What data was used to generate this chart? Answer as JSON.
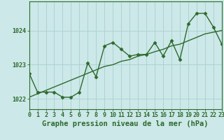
{
  "hours": [
    0,
    1,
    2,
    3,
    4,
    5,
    6,
    7,
    8,
    9,
    10,
    11,
    12,
    13,
    14,
    15,
    16,
    17,
    18,
    19,
    20,
    21,
    22,
    23
  ],
  "pressure": [
    1022.75,
    1022.2,
    1022.2,
    1022.2,
    1022.05,
    1022.05,
    1022.2,
    1023.05,
    1022.65,
    1023.55,
    1023.65,
    1023.45,
    1023.25,
    1023.3,
    1023.3,
    1023.65,
    1023.25,
    1023.7,
    1023.15,
    1024.2,
    1024.5,
    1024.5,
    1024.1,
    1023.6
  ],
  "trend": [
    1022.05,
    1022.15,
    1022.25,
    1022.35,
    1022.45,
    1022.55,
    1022.65,
    1022.75,
    1022.85,
    1022.95,
    1023.0,
    1023.1,
    1023.15,
    1023.25,
    1023.3,
    1023.38,
    1023.45,
    1023.55,
    1023.6,
    1023.7,
    1023.8,
    1023.9,
    1023.95,
    1024.0
  ],
  "line_color": "#2d6a2d",
  "bg_color": "#cce8e8",
  "grid_color": "#aacfcf",
  "ylabel_ticks": [
    1022,
    1023,
    1024
  ],
  "ylim": [
    1021.7,
    1024.85
  ],
  "xlim": [
    0,
    23
  ],
  "xlabel": "Graphe pression niveau de la mer (hPa)",
  "marker": "D",
  "markersize": 2.5,
  "linewidth": 1.0,
  "xlabel_fontsize": 7.5,
  "tick_fontsize": 6.0
}
